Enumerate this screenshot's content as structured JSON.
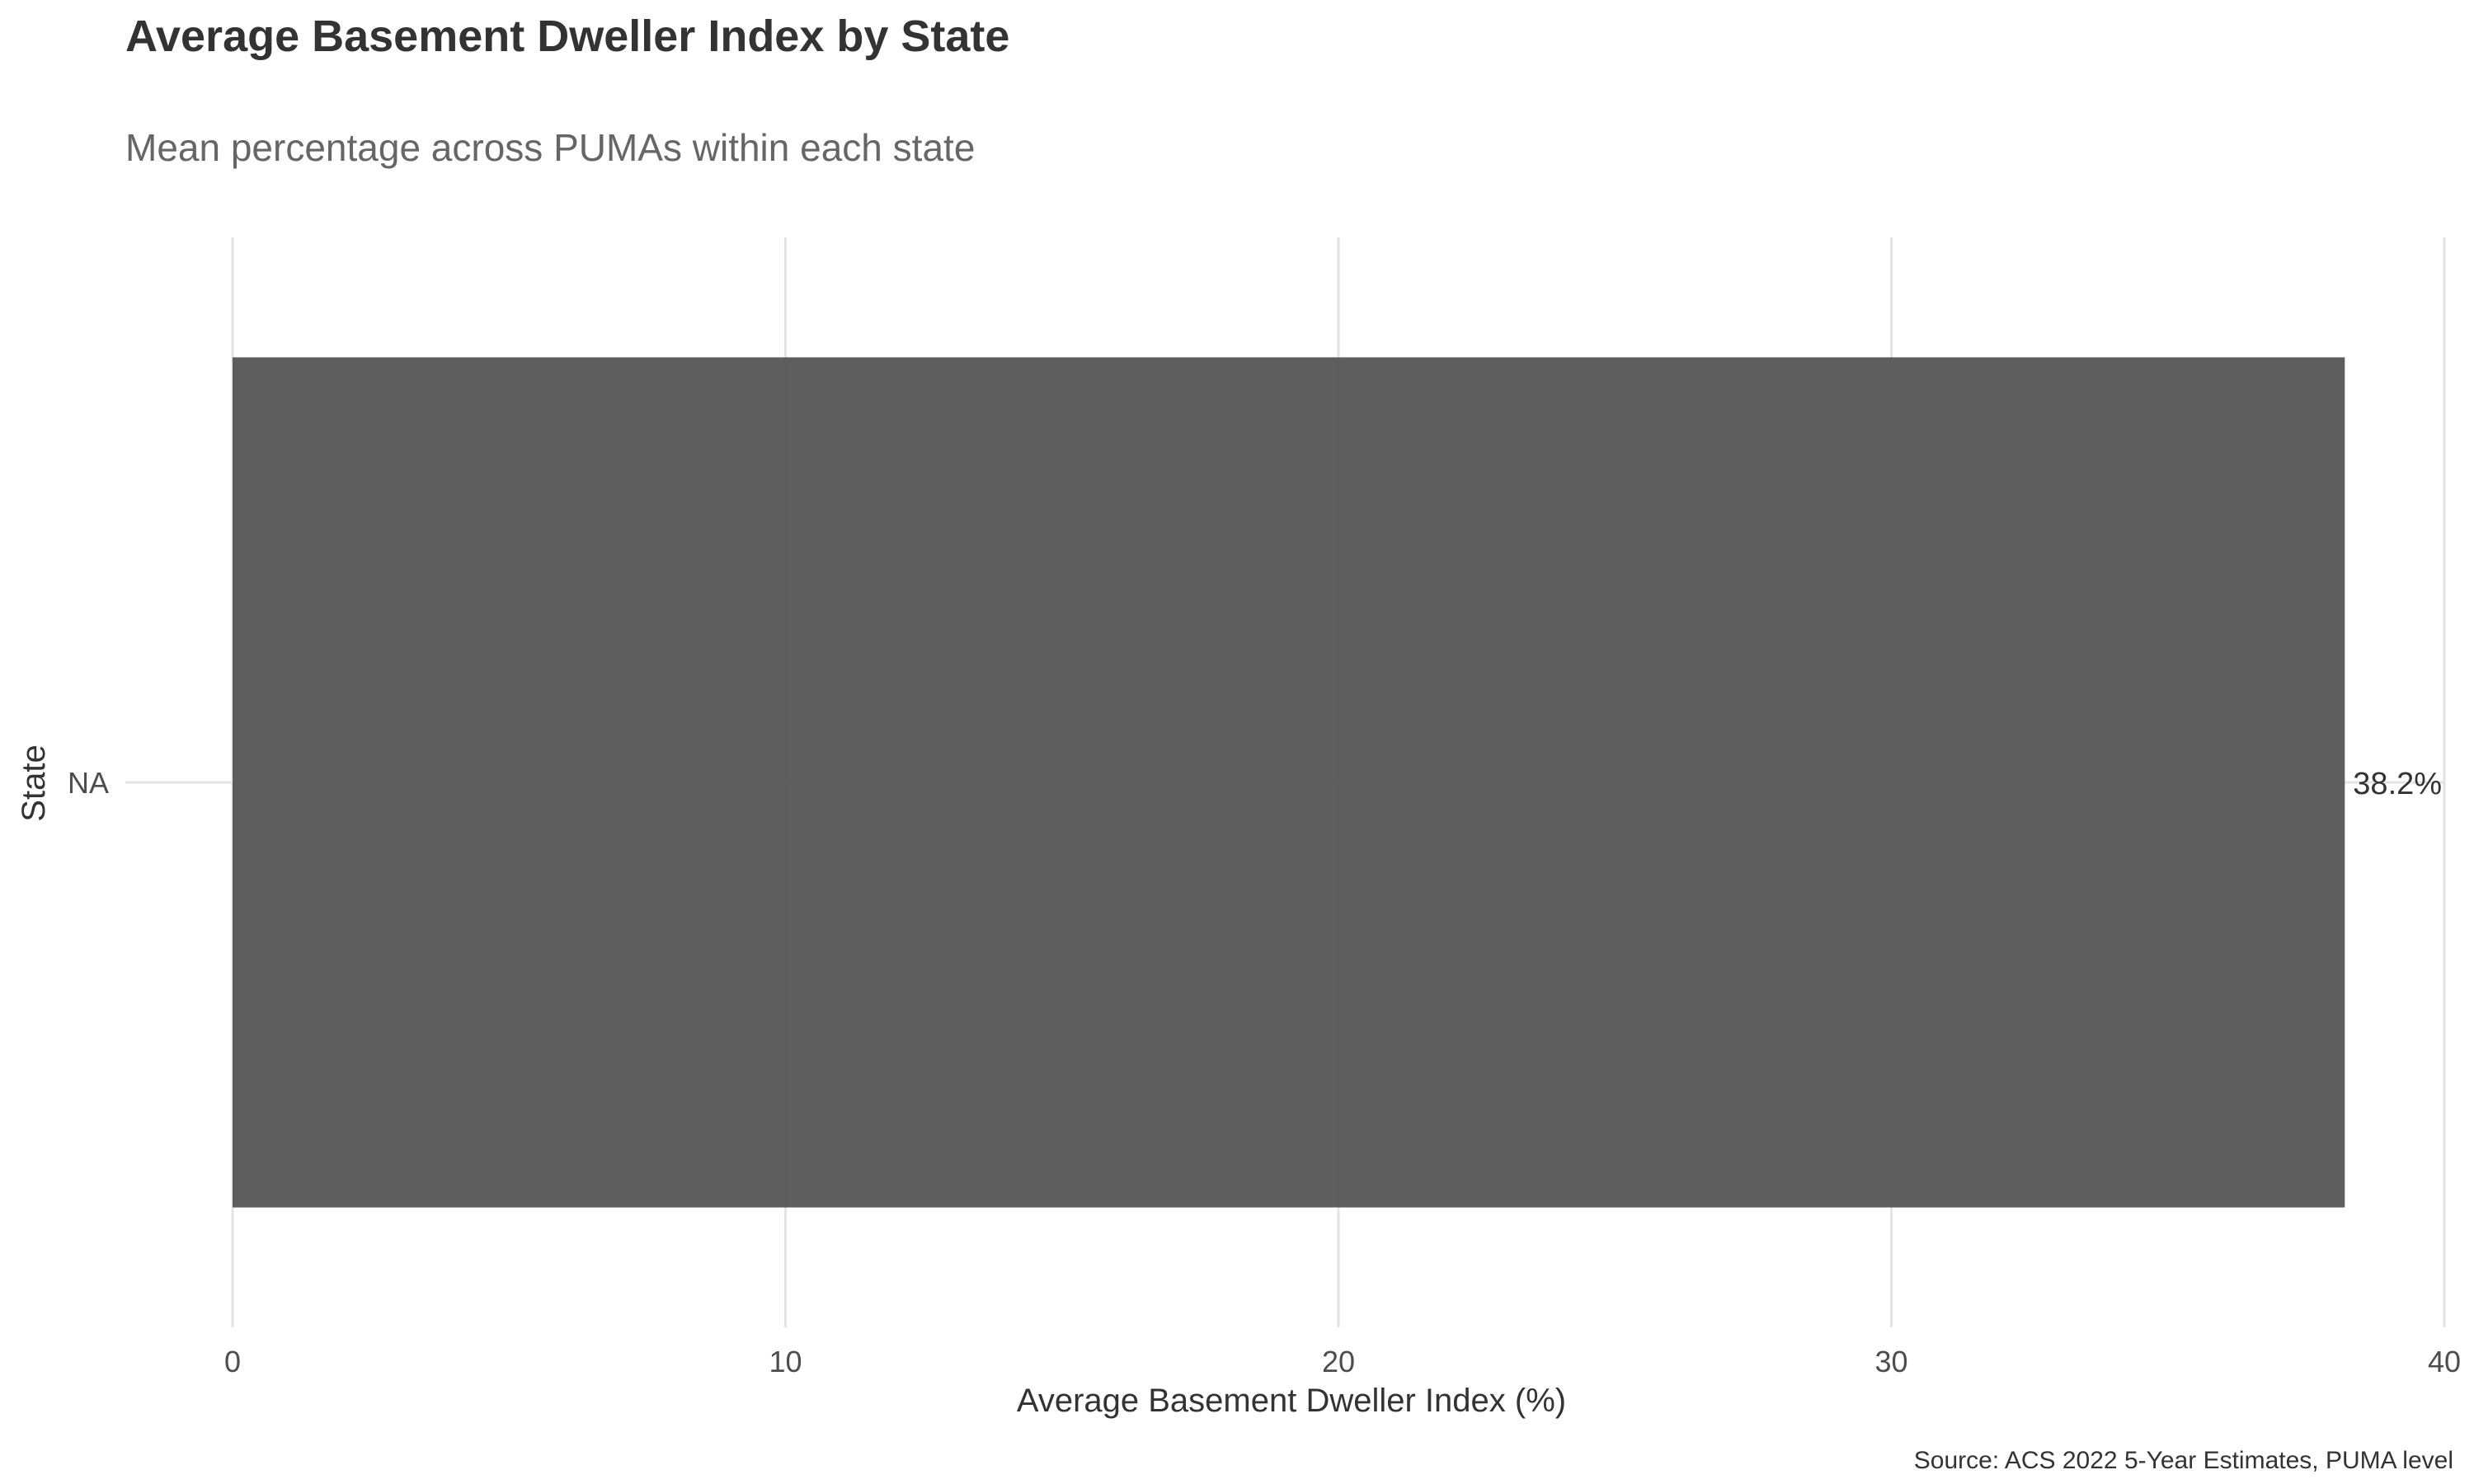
{
  "chart_data": {
    "type": "bar",
    "orientation": "horizontal",
    "title": "Average Basement Dweller Index by State",
    "subtitle": "Mean percentage across PUMAs within each state",
    "xlabel": "Average Basement Dweller Index (%)",
    "ylabel": "State",
    "caption": "Source: ACS 2022 5-Year Estimates, PUMA level",
    "categories": [
      "NA"
    ],
    "values": [
      38.2
    ],
    "data_labels": [
      "38.2%"
    ],
    "xlim": [
      0,
      40
    ],
    "xticks": [
      0,
      10,
      20,
      30,
      40
    ],
    "xtick_labels": [
      "0",
      "10",
      "20",
      "30",
      "40"
    ],
    "grid": true,
    "legend": "none",
    "bar_color": "#595959",
    "grid_color": "#e3e3e3"
  }
}
